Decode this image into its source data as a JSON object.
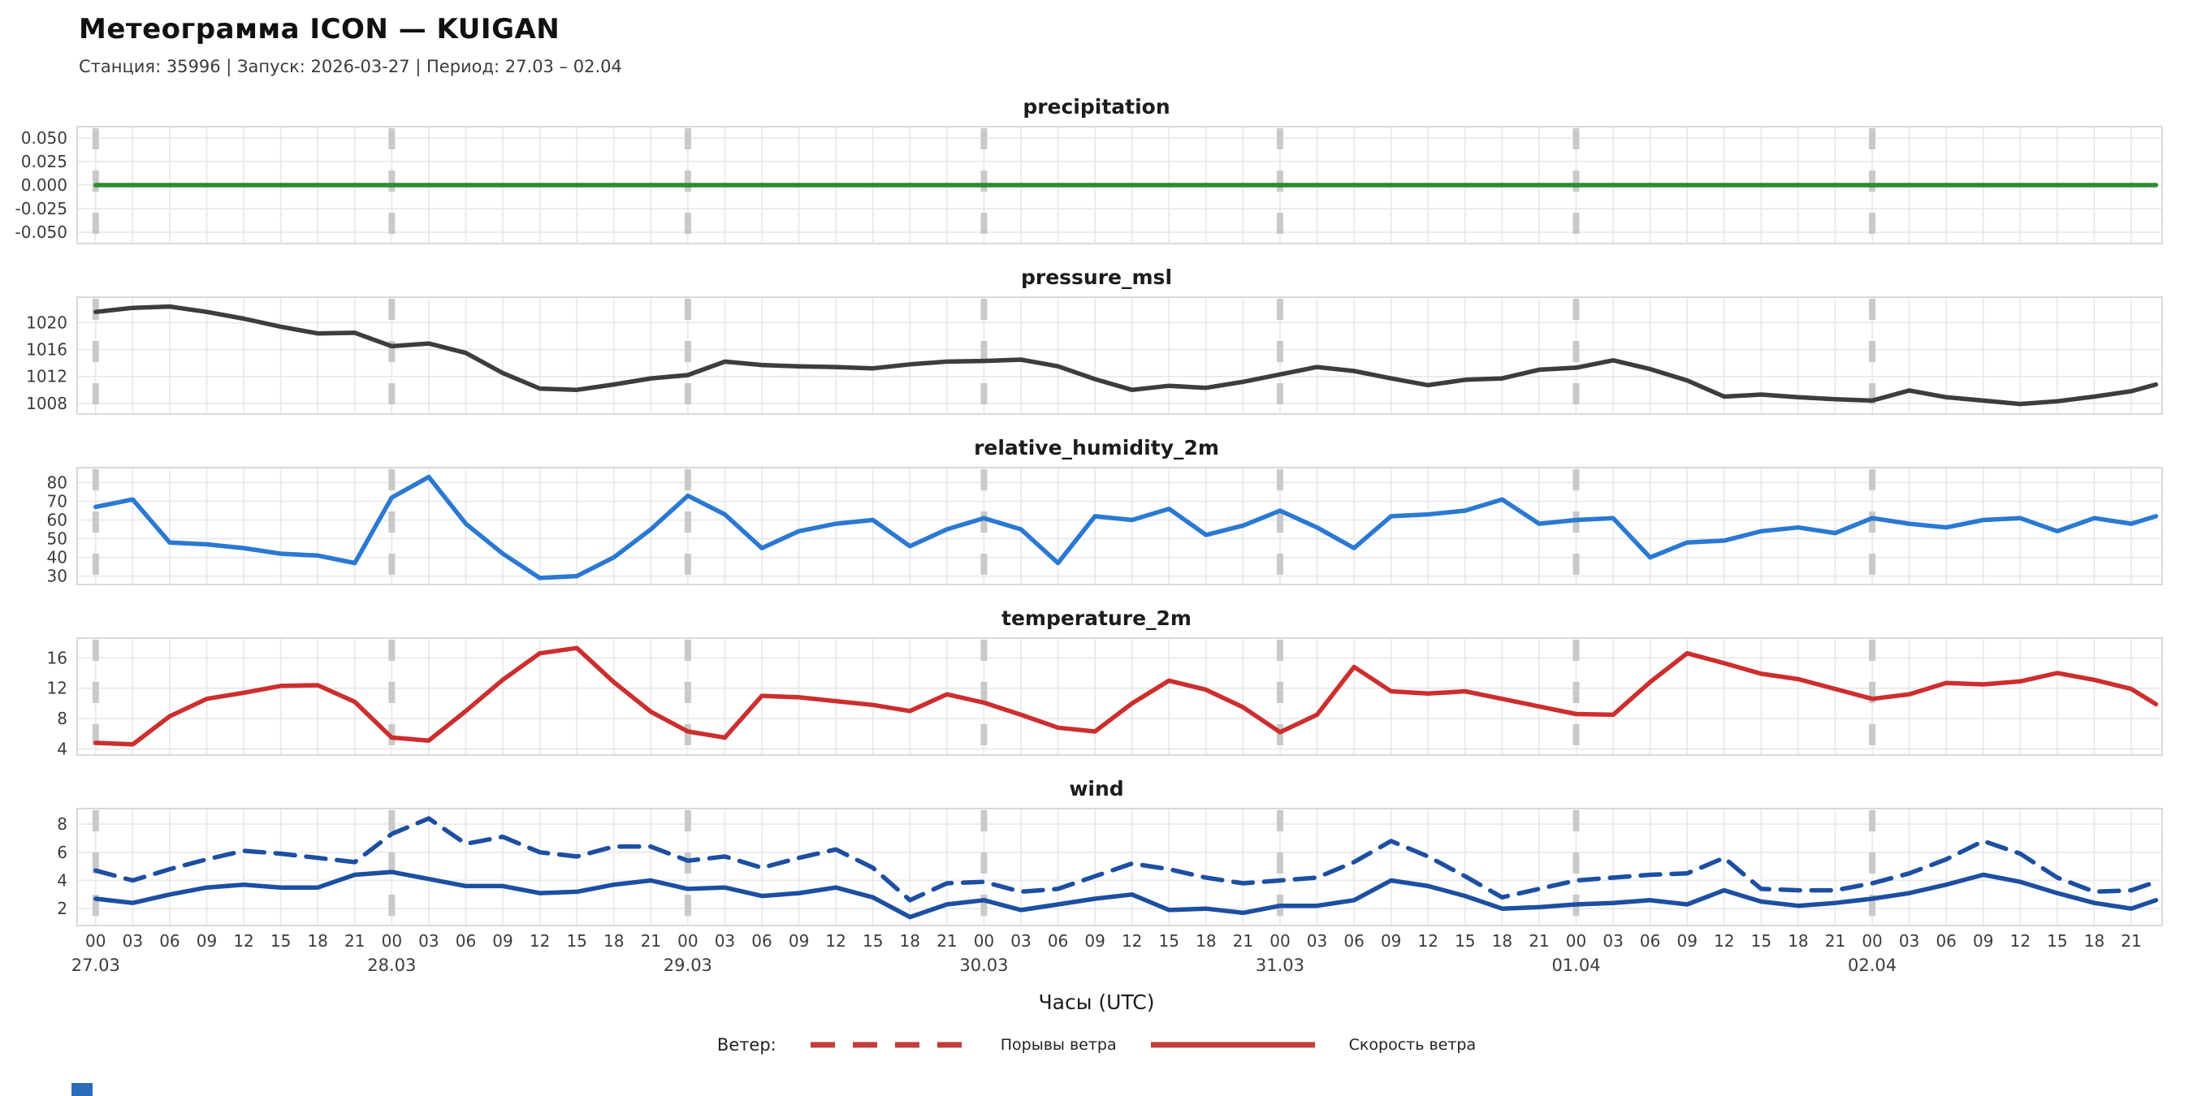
{
  "header": {
    "title": "Метеограмма ICON — KUIGAN",
    "subtitle": "Станция: 35996  | Запуск: 2026-03-27  | Период: 27.03 – 02.04"
  },
  "xlabel": "Часы (UTC)",
  "legend": {
    "prefix": "Ветер:",
    "gusts_label": "Порывы ветра",
    "speed_label": "Скорость ветра",
    "sample_color": "#c43c3c"
  },
  "colors": {
    "grid": "#e7e7e7",
    "frame": "#d9d9d9",
    "day_dash": "#c9c9c9",
    "tick_text": "#3c3c3c",
    "precipitation": "#2e8b2e",
    "pressure": "#3d3d3d",
    "humidity": "#2a79d2",
    "temperature": "#cd2e2e",
    "wind": "#1d4fa1",
    "corner_mark": "#2b6cb8"
  },
  "axis": {
    "xlim": [
      -1.5,
      167.5
    ],
    "hours": [
      0,
      3,
      6,
      9,
      12,
      15,
      18,
      21,
      24,
      27,
      30,
      33,
      36,
      39,
      42,
      45,
      48,
      51,
      54,
      57,
      60,
      63,
      66,
      69,
      72,
      75,
      78,
      81,
      84,
      87,
      90,
      93,
      96,
      99,
      102,
      105,
      108,
      111,
      114,
      117,
      120,
      123,
      126,
      129,
      132,
      135,
      138,
      141,
      144,
      147,
      150,
      153,
      156,
      159,
      162,
      165,
      167
    ],
    "hour_tick_labels": [
      "00",
      "03",
      "06",
      "09",
      "12",
      "15",
      "18",
      "21"
    ],
    "day_starts": [
      0,
      24,
      48,
      72,
      96,
      120,
      144
    ],
    "day_labels": [
      "27.03",
      "28.03",
      "29.03",
      "30.03",
      "31.03",
      "01.04",
      "02.04"
    ]
  },
  "chart_data": [
    {
      "type": "line",
      "title": "precipitation",
      "color_key": "precipitation",
      "ylim": [
        -0.062,
        0.062
      ],
      "yticks": [
        -0.05,
        -0.025,
        0.0,
        0.025,
        0.05
      ],
      "ytick_labels": [
        "-0.050",
        "-0.025",
        "0.000",
        "0.025",
        "0.050"
      ],
      "series": [
        {
          "name": "precipitation",
          "style": "solid",
          "values": [
            0,
            0,
            0,
            0,
            0,
            0,
            0,
            0,
            0,
            0,
            0,
            0,
            0,
            0,
            0,
            0,
            0,
            0,
            0,
            0,
            0,
            0,
            0,
            0,
            0,
            0,
            0,
            0,
            0,
            0,
            0,
            0,
            0,
            0,
            0,
            0,
            0,
            0,
            0,
            0,
            0,
            0,
            0,
            0,
            0,
            0,
            0,
            0,
            0,
            0,
            0,
            0,
            0,
            0,
            0,
            0,
            0
          ]
        }
      ]
    },
    {
      "type": "line",
      "title": "pressure_msl",
      "color_key": "pressure",
      "ylim": [
        1006.4,
        1023.8
      ],
      "yticks": [
        1008,
        1012,
        1016,
        1020
      ],
      "ytick_labels": [
        "1008",
        "1012",
        "1016",
        "1020"
      ],
      "series": [
        {
          "name": "pressure_msl",
          "style": "solid",
          "values": [
            1021.6,
            1022.2,
            1022.4,
            1021.6,
            1020.6,
            1019.4,
            1018.4,
            1018.5,
            1016.5,
            1016.9,
            1015.5,
            1012.5,
            1010.2,
            1010.0,
            1010.8,
            1011.7,
            1012.2,
            1014.2,
            1013.7,
            1013.5,
            1013.4,
            1013.2,
            1013.8,
            1014.2,
            1014.3,
            1014.5,
            1013.5,
            1011.6,
            1010.0,
            1010.6,
            1010.3,
            1011.2,
            1012.3,
            1013.4,
            1012.8,
            1011.7,
            1010.7,
            1011.5,
            1011.7,
            1013.0,
            1013.3,
            1014.4,
            1013.1,
            1011.4,
            1009.0,
            1009.3,
            1008.9,
            1008.6,
            1008.4,
            1009.9,
            1008.9,
            1008.4,
            1007.9,
            1008.3,
            1009.0,
            1009.8,
            1010.8
          ]
        }
      ]
    },
    {
      "type": "line",
      "title": "relative_humidity_2m",
      "color_key": "humidity",
      "ylim": [
        25.5,
        88
      ],
      "yticks": [
        30,
        40,
        50,
        60,
        70,
        80
      ],
      "ytick_labels": [
        "30",
        "40",
        "50",
        "60",
        "70",
        "80"
      ],
      "series": [
        {
          "name": "relative_humidity_2m",
          "style": "solid",
          "values": [
            67,
            71,
            48,
            47,
            45,
            42,
            41,
            37,
            72,
            83,
            58,
            42,
            29,
            30,
            40,
            55,
            73,
            63,
            45,
            54,
            58,
            60,
            46,
            55,
            61,
            55,
            37,
            62,
            60,
            66,
            52,
            57,
            65,
            56,
            45,
            62,
            63,
            65,
            71,
            58,
            60,
            61,
            40,
            48,
            49,
            54,
            56,
            53,
            61,
            58,
            56,
            60,
            61,
            54,
            61,
            58,
            62
          ]
        }
      ]
    },
    {
      "type": "line",
      "title": "temperature_2m",
      "color_key": "temperature",
      "ylim": [
        3.2,
        18.6
      ],
      "yticks": [
        4,
        8,
        12,
        16
      ],
      "ytick_labels": [
        "4",
        "8",
        "12",
        "16"
      ],
      "series": [
        {
          "name": "temperature_2m",
          "style": "solid",
          "values": [
            4.8,
            4.6,
            8.3,
            10.6,
            11.4,
            12.3,
            12.4,
            10.2,
            5.5,
            5.1,
            9.0,
            13.1,
            16.6,
            17.3,
            12.8,
            8.9,
            6.3,
            5.5,
            11.0,
            10.8,
            10.3,
            9.8,
            9.0,
            11.2,
            10.1,
            8.5,
            6.8,
            6.3,
            10.0,
            13.0,
            11.8,
            9.5,
            6.2,
            8.5,
            14.8,
            11.6,
            11.3,
            11.6,
            10.6,
            9.6,
            8.6,
            8.5,
            12.8,
            16.6,
            15.3,
            13.9,
            13.2,
            11.9,
            10.6,
            11.2,
            12.7,
            12.5,
            12.9,
            14.0,
            13.1,
            11.9,
            9.9
          ]
        }
      ]
    },
    {
      "type": "line",
      "title": "wind",
      "color_key": "wind",
      "ylim": [
        0.8,
        9.1
      ],
      "yticks": [
        2,
        4,
        6,
        8
      ],
      "ytick_labels": [
        "2",
        "4",
        "6",
        "8"
      ],
      "series": [
        {
          "name": "Порывы ветра",
          "style": "dashed",
          "values": [
            4.7,
            4.0,
            4.8,
            5.5,
            6.1,
            5.9,
            5.6,
            5.3,
            7.3,
            8.4,
            6.6,
            7.1,
            6.0,
            5.7,
            6.4,
            6.4,
            5.4,
            5.7,
            4.9,
            5.6,
            6.2,
            4.9,
            2.6,
            3.8,
            3.9,
            3.2,
            3.4,
            4.3,
            5.2,
            4.8,
            4.2,
            3.8,
            4.0,
            4.2,
            5.3,
            6.8,
            5.7,
            4.3,
            2.8,
            3.4,
            4.0,
            4.2,
            4.4,
            4.5,
            5.6,
            3.4,
            3.3,
            3.3,
            3.8,
            4.5,
            5.5,
            6.8,
            5.9,
            4.2,
            3.2,
            3.3,
            3.9
          ]
        },
        {
          "name": "Скорость ветра",
          "style": "solid",
          "values": [
            2.7,
            2.4,
            3.0,
            3.5,
            3.7,
            3.5,
            3.5,
            4.4,
            4.6,
            4.1,
            3.6,
            3.6,
            3.1,
            3.2,
            3.7,
            4.0,
            3.4,
            3.5,
            2.9,
            3.1,
            3.5,
            2.8,
            1.4,
            2.3,
            2.6,
            1.9,
            2.3,
            2.7,
            3.0,
            1.9,
            2.0,
            1.7,
            2.2,
            2.2,
            2.6,
            4.0,
            3.6,
            2.9,
            2.0,
            2.1,
            2.3,
            2.4,
            2.6,
            2.3,
            3.3,
            2.5,
            2.2,
            2.4,
            2.7,
            3.1,
            3.7,
            4.4,
            3.9,
            3.1,
            2.4,
            2.0,
            2.6
          ]
        }
      ]
    }
  ]
}
